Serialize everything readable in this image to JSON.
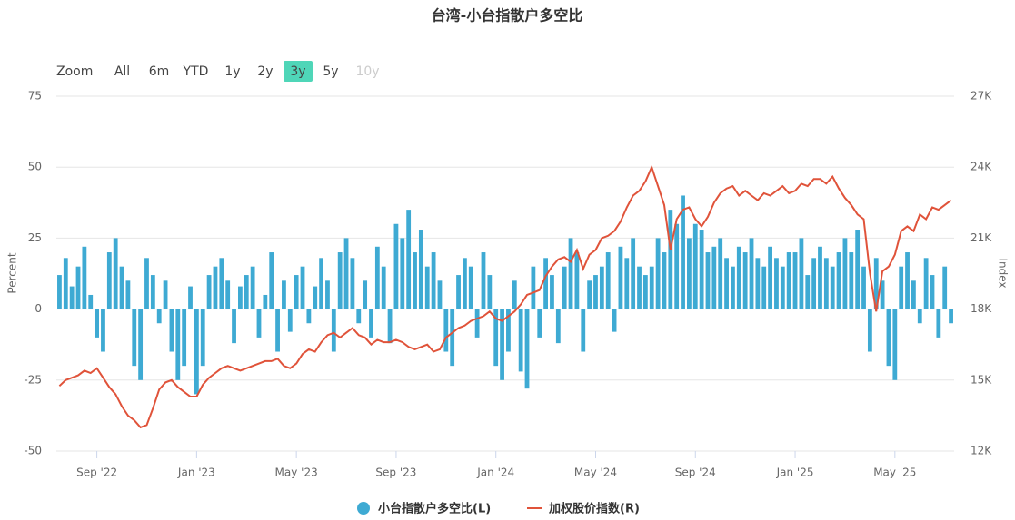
{
  "chart_data": {
    "type": "bar-line",
    "title": "台湾-小台指散户多空比",
    "range_selector": {
      "label": "Zoom",
      "buttons": [
        "All",
        "6m",
        "YTD",
        "1y",
        "2y",
        "3y",
        "5y",
        "10y"
      ],
      "active": "3y",
      "disabled": [
        "10y"
      ],
      "active_color": "#4fd6b8"
    },
    "y_label": "Percent",
    "y2_label": "Index",
    "ylim": [
      -50,
      75
    ],
    "yticks": [
      -50,
      -25,
      0,
      25,
      50,
      75
    ],
    "y2lim": [
      12000,
      27000
    ],
    "y2ticks": [
      {
        "value": 12000,
        "label": "12K"
      },
      {
        "value": 15000,
        "label": "15K"
      },
      {
        "value": 18000,
        "label": "18K"
      },
      {
        "value": 21000,
        "label": "21K"
      },
      {
        "value": 24000,
        "label": "24K"
      },
      {
        "value": 27000,
        "label": "27K"
      }
    ],
    "grid": true,
    "categories": [
      null,
      null,
      null,
      null,
      null,
      null,
      "Sep '22",
      null,
      null,
      null,
      null,
      null,
      null,
      null,
      null,
      null,
      null,
      null,
      null,
      null,
      null,
      null,
      "Jan '23",
      null,
      null,
      null,
      null,
      null,
      null,
      null,
      null,
      null,
      null,
      null,
      null,
      null,
      null,
      null,
      "May '23",
      null,
      null,
      null,
      null,
      null,
      null,
      null,
      null,
      null,
      null,
      null,
      null,
      null,
      null,
      null,
      "Sep '23",
      null,
      null,
      null,
      null,
      null,
      null,
      null,
      null,
      null,
      null,
      null,
      null,
      null,
      null,
      null,
      "Jan '24",
      null,
      null,
      null,
      null,
      null,
      null,
      null,
      null,
      null,
      null,
      null,
      null,
      null,
      null,
      null,
      "May '24",
      null,
      null,
      null,
      null,
      null,
      null,
      null,
      null,
      null,
      null,
      null,
      null,
      null,
      null,
      null,
      "Sep '24",
      null,
      null,
      null,
      null,
      null,
      null,
      null,
      null,
      null,
      null,
      null,
      null,
      null,
      null,
      null,
      "Jan '25",
      null,
      null,
      null,
      null,
      null,
      null,
      null,
      null,
      null,
      null,
      null,
      null,
      null,
      null,
      null,
      "May '25",
      null,
      null,
      null,
      null,
      null,
      null,
      null,
      null,
      null
    ],
    "series": [
      {
        "name": "小台指散户多空比(L)",
        "color": "#3eaad3",
        "kind": "bar",
        "axis": "y",
        "values": [
          12,
          18,
          8,
          15,
          22,
          5,
          -10,
          -15,
          20,
          25,
          15,
          10,
          -20,
          -25,
          18,
          12,
          -5,
          10,
          -15,
          -25,
          -20,
          8,
          -30,
          -20,
          12,
          15,
          18,
          10,
          -12,
          8,
          12,
          15,
          -10,
          5,
          20,
          -15,
          10,
          -8,
          12,
          15,
          -5,
          8,
          18,
          10,
          -15,
          20,
          25,
          18,
          -5,
          10,
          -10,
          22,
          15,
          -12,
          30,
          25,
          35,
          20,
          28,
          15,
          20,
          10,
          -15,
          -20,
          12,
          18,
          15,
          -10,
          20,
          12,
          -20,
          -25,
          -15,
          10,
          -22,
          -28,
          15,
          -10,
          18,
          12,
          -12,
          15,
          25,
          20,
          -15,
          10,
          12,
          15,
          20,
          -8,
          22,
          18,
          25,
          15,
          12,
          15,
          25,
          20,
          35,
          30,
          40,
          25,
          30,
          28,
          20,
          22,
          25,
          18,
          15,
          22,
          20,
          25,
          18,
          15,
          22,
          18,
          15,
          20,
          20,
          25,
          12,
          18,
          22,
          18,
          15,
          20,
          25,
          20,
          28,
          15,
          -15,
          18,
          10,
          -20,
          -25,
          15,
          20,
          10,
          -5,
          18,
          12,
          -10,
          15,
          -5
        ]
      },
      {
        "name": "加权股价指数(R)",
        "color": "#e0533a",
        "kind": "line",
        "axis": "y2",
        "values": [
          14750,
          15000,
          15100,
          15200,
          15400,
          15300,
          15500,
          15100,
          14700,
          14400,
          13900,
          13500,
          13300,
          13000,
          13100,
          13800,
          14600,
          14900,
          15000,
          14700,
          14500,
          14300,
          14300,
          14800,
          15100,
          15300,
          15500,
          15600,
          15500,
          15400,
          15500,
          15600,
          15700,
          15800,
          15800,
          15900,
          15600,
          15500,
          15700,
          16100,
          16300,
          16200,
          16600,
          16900,
          17000,
          16800,
          17000,
          17200,
          16900,
          16800,
          16500,
          16700,
          16600,
          16600,
          16700,
          16600,
          16400,
          16300,
          16400,
          16500,
          16200,
          16300,
          16800,
          17000,
          17200,
          17300,
          17500,
          17600,
          17700,
          17900,
          17600,
          17500,
          17700,
          17900,
          18200,
          18600,
          18700,
          18800,
          19400,
          19800,
          20100,
          20200,
          20000,
          20500,
          19700,
          20300,
          20500,
          21000,
          21100,
          21300,
          21700,
          22300,
          22800,
          23000,
          23400,
          24000,
          23200,
          22400,
          20500,
          21800,
          22200,
          22300,
          21800,
          21500,
          21900,
          22500,
          22900,
          23100,
          23200,
          22800,
          23000,
          22800,
          22600,
          22900,
          22800,
          23000,
          23200,
          22900,
          23000,
          23300,
          23200,
          23500,
          23500,
          23300,
          23600,
          23100,
          22700,
          22400,
          22000,
          21800,
          19500,
          17900,
          19600,
          19800,
          20300,
          21300,
          21500,
          21300,
          22000,
          21800,
          22300,
          22200,
          22400,
          22600
        ]
      }
    ]
  }
}
